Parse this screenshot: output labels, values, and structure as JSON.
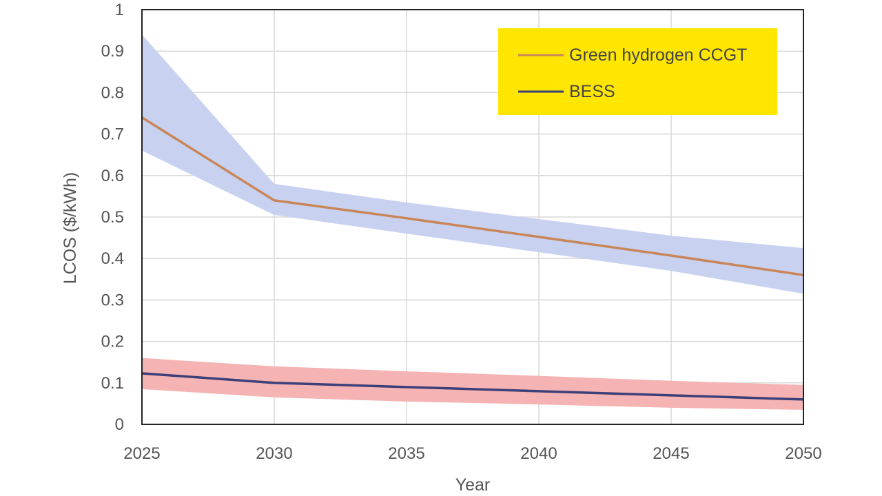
{
  "chart_data": {
    "type": "line",
    "title": "",
    "xlabel": "Year",
    "ylabel": "LCOS ($/kWh)",
    "x": [
      2025,
      2030,
      2035,
      2040,
      2045,
      2050
    ],
    "xlim": [
      2025,
      2050
    ],
    "ylim": [
      0,
      1
    ],
    "xticks": [
      "2025",
      "2030",
      "2035",
      "2040",
      "2045",
      "2050"
    ],
    "yticks": [
      "0",
      "0.1",
      "0.2",
      "0.3",
      "0.4",
      "0.5",
      "0.6",
      "0.7",
      "0.8",
      "0.9",
      "1"
    ],
    "grid": true,
    "legend_position": "top-right",
    "legend_background": "#FFE600",
    "series": [
      {
        "name": "Green hydrogen CCGT",
        "values": [
          0.74,
          0.54,
          0.497,
          0.452,
          0.407,
          0.36
        ],
        "band_upper": [
          0.94,
          0.58,
          0.535,
          0.495,
          0.455,
          0.425
        ],
        "band_lower": [
          0.66,
          0.505,
          0.46,
          0.415,
          0.37,
          0.315
        ],
        "line_color": "#C8865A",
        "band_color": "#C8D2F0"
      },
      {
        "name": "BESS",
        "values": [
          0.123,
          0.1,
          0.09,
          0.08,
          0.07,
          0.06
        ],
        "band_upper": [
          0.16,
          0.14,
          0.128,
          0.117,
          0.105,
          0.095
        ],
        "band_lower": [
          0.085,
          0.065,
          0.055,
          0.048,
          0.04,
          0.035
        ],
        "line_color": "#3D3F79",
        "band_color": "#F5B3B3"
      }
    ]
  }
}
